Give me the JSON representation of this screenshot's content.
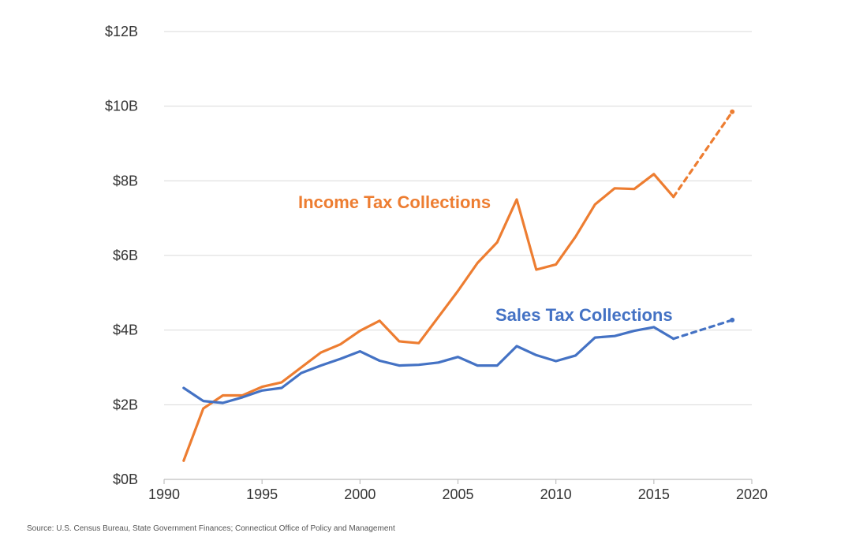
{
  "chart_data": {
    "type": "line",
    "title": "",
    "xlabel": "",
    "ylabel": "",
    "xlim": [
      1990,
      2020
    ],
    "ylim": [
      0,
      12
    ],
    "x_ticks": [
      1990,
      1995,
      2000,
      2005,
      2010,
      2015,
      2020
    ],
    "y_ticks": [
      0,
      2,
      4,
      6,
      8,
      10,
      12
    ],
    "y_tick_labels": [
      "$0B",
      "$2B",
      "$4B",
      "$6B",
      "$8B",
      "$10B",
      "$12B"
    ],
    "grid": "horizontal",
    "legend": "none (series labeled directly on chart)",
    "series": [
      {
        "name": "Income Tax Collections",
        "color": "#ED7D31",
        "x": [
          1991,
          1992,
          1993,
          1994,
          1995,
          1996,
          1997,
          1998,
          1999,
          2000,
          2001,
          2002,
          2003,
          2004,
          2005,
          2006,
          2007,
          2008,
          2009,
          2010,
          2011,
          2012,
          2013,
          2014,
          2015,
          2016
        ],
        "values": [
          0.5,
          1.9,
          2.25,
          2.25,
          2.48,
          2.6,
          3.0,
          3.4,
          3.62,
          3.98,
          4.25,
          3.7,
          3.65,
          4.35,
          5.05,
          5.8,
          6.35,
          7.5,
          5.62,
          5.76,
          6.5,
          7.37,
          7.8,
          7.78,
          8.18,
          7.57
        ],
        "projection": {
          "x": [
            2016,
            2019
          ],
          "values": [
            7.57,
            9.85
          ]
        }
      },
      {
        "name": "Sales Tax Collections",
        "color": "#4472C4",
        "x": [
          1991,
          1992,
          1993,
          1994,
          1995,
          1996,
          1997,
          1998,
          1999,
          2000,
          2001,
          2002,
          2003,
          2004,
          2005,
          2006,
          2007,
          2008,
          2009,
          2010,
          2011,
          2012,
          2013,
          2014,
          2015,
          2016
        ],
        "values": [
          2.45,
          2.1,
          2.05,
          2.2,
          2.38,
          2.45,
          2.85,
          3.05,
          3.23,
          3.43,
          3.18,
          3.05,
          3.07,
          3.13,
          3.28,
          3.05,
          3.05,
          3.57,
          3.33,
          3.17,
          3.32,
          3.8,
          3.84,
          3.98,
          4.08,
          3.77
        ],
        "projection": {
          "x": [
            2016,
            2019
          ],
          "values": [
            3.77,
            4.27
          ]
        }
      }
    ]
  },
  "source_text": "Source: U.S. Census Bureau, State Government Finances; Connecticut Office of Policy and Management"
}
